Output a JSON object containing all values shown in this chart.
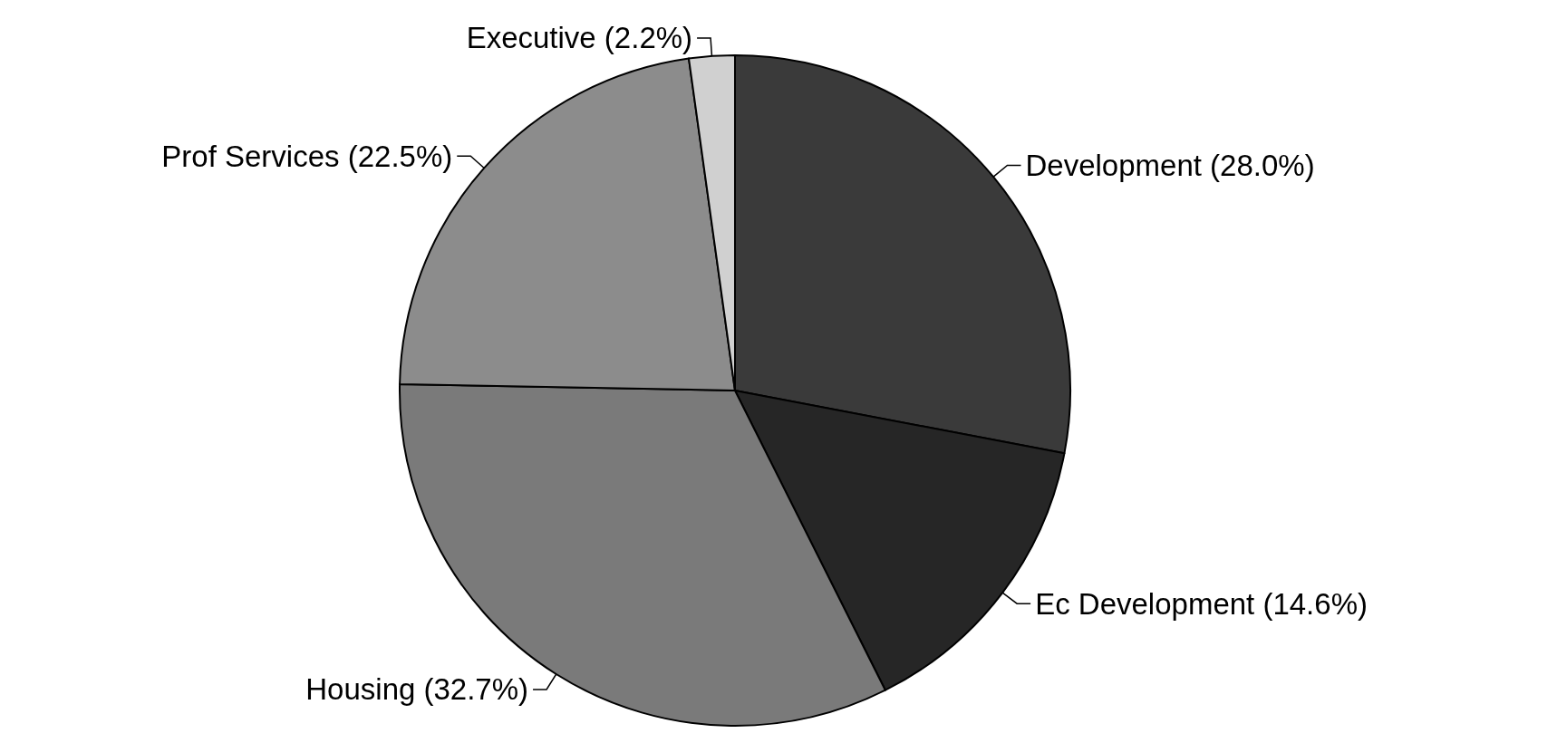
{
  "chart_data": {
    "type": "pie",
    "categories": [
      "Development",
      "Ec Development",
      "Housing",
      "Prof Services",
      "Executive"
    ],
    "values": [
      28.0,
      14.6,
      32.7,
      22.5,
      2.2
    ],
    "value_labels": [
      "(28.0%)",
      "(14.6%)",
      "(32.7%)",
      "(22.5%)",
      "(2.2%)"
    ],
    "colors": [
      "#3a3a3a",
      "#262626",
      "#7a7a7a",
      "#8c8c8c",
      "#d0d0d0"
    ],
    "data_labels": true,
    "legend": false
  }
}
